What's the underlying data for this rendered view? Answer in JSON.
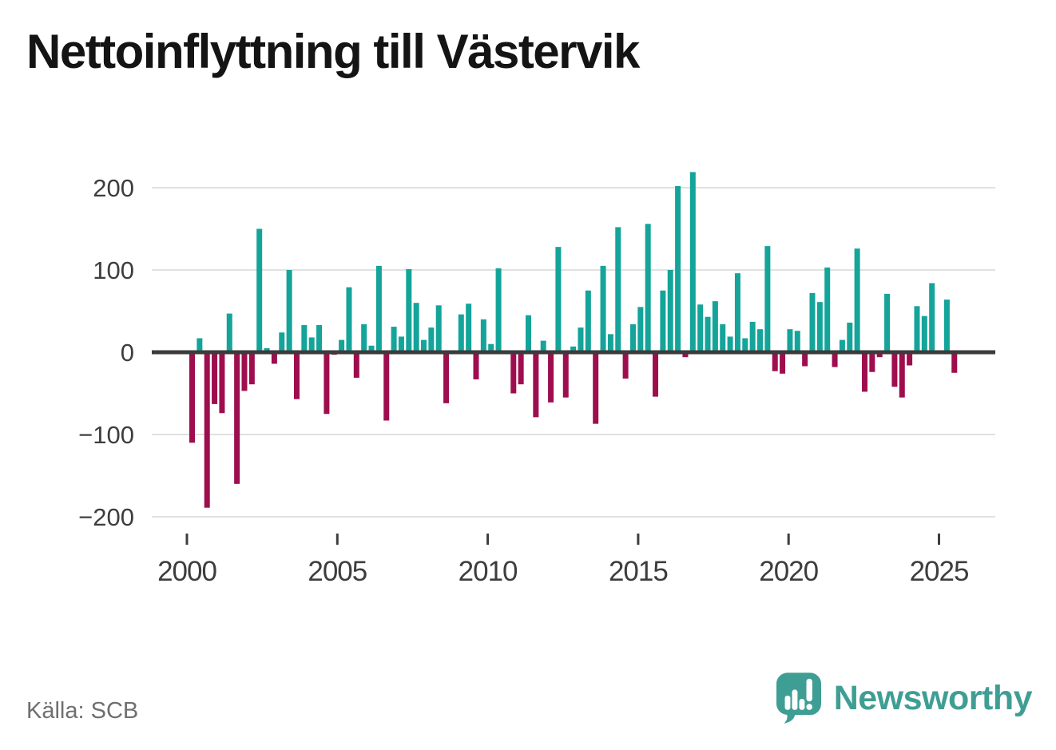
{
  "title": "Nettoinflyttning till Västervik",
  "source": "Källa: SCB",
  "branding": {
    "name": "Newsworthy"
  },
  "colors": {
    "positive": "#14a49a",
    "negative": "#9e0e4e",
    "axis_text": "#3d3d3d",
    "grid": "#e1e1e1",
    "zero_line": "#3b3b3b",
    "title": "#141414",
    "source_text": "#6f6f6f",
    "brand": "#3f9e94"
  },
  "chart_data": {
    "type": "bar",
    "title": "Nettoinflyttning till Västervik",
    "series_name": "Nettoinflyttning per kvartal",
    "xlabel": "",
    "ylabel": "",
    "grid": "horizontal",
    "legend": "none",
    "ylim": [
      -220,
      240
    ],
    "yticks": [
      200,
      100,
      0,
      -100,
      -200
    ],
    "ytick_labels": [
      "200",
      "100",
      "0",
      "−100",
      "−200"
    ],
    "xticks": [
      "2000",
      "2005",
      "2010",
      "2015",
      "2020",
      "2025"
    ],
    "x": [
      "2000K1",
      "2000K2",
      "2000K3",
      "2000K4",
      "2001K1",
      "2001K2",
      "2001K3",
      "2001K4",
      "2002K1",
      "2002K2",
      "2002K3",
      "2002K4",
      "2003K1",
      "2003K2",
      "2003K3",
      "2003K4",
      "2004K1",
      "2004K2",
      "2004K3",
      "2004K4",
      "2005K1",
      "2005K2",
      "2005K3",
      "2005K4",
      "2006K1",
      "2006K2",
      "2006K3",
      "2006K4",
      "2007K1",
      "2007K2",
      "2007K3",
      "2007K4",
      "2008K1",
      "2008K2",
      "2008K3",
      "2008K4",
      "2009K1",
      "2009K2",
      "2009K3",
      "2009K4",
      "2010K1",
      "2010K2",
      "2010K3",
      "2010K4",
      "2011K1",
      "2011K2",
      "2011K3",
      "2011K4",
      "2012K1",
      "2012K2",
      "2012K3",
      "2012K4",
      "2013K1",
      "2013K2",
      "2013K3",
      "2013K4",
      "2014K1",
      "2014K2",
      "2014K3",
      "2014K4",
      "2015K1",
      "2015K2",
      "2015K3",
      "2015K4",
      "2016K1",
      "2016K2",
      "2016K3",
      "2016K4",
      "2017K1",
      "2017K2",
      "2017K3",
      "2017K4",
      "2018K1",
      "2018K2",
      "2018K3",
      "2018K4",
      "2019K1",
      "2019K2",
      "2019K3",
      "2019K4",
      "2020K1",
      "2020K2",
      "2020K3",
      "2020K4",
      "2021K1",
      "2021K2",
      "2021K3",
      "2021K4",
      "2022K1",
      "2022K2",
      "2022K3",
      "2022K4",
      "2023K1",
      "2023K2",
      "2023K3",
      "2023K4",
      "2024K1",
      "2024K2",
      "2024K3",
      "2024K4",
      "2025K1",
      "2025K2",
      "2025K3"
    ],
    "values": [
      -110,
      17,
      -189,
      -63,
      -74,
      47,
      -160,
      -47,
      -39,
      150,
      5,
      -14,
      24,
      100,
      -57,
      33,
      18,
      33,
      -75,
      -3,
      15,
      79,
      -31,
      34,
      8,
      105,
      -83,
      31,
      19,
      101,
      60,
      15,
      30,
      57,
      -62,
      0,
      46,
      59,
      -33,
      40,
      10,
      102,
      0,
      -50,
      -39,
      45,
      -79,
      14,
      -61,
      128,
      -55,
      7,
      30,
      75,
      -87,
      105,
      22,
      152,
      -32,
      34,
      55,
      156,
      -54,
      75,
      100,
      202,
      -6,
      219,
      58,
      43,
      62,
      34,
      19,
      96,
      17,
      37,
      28,
      129,
      -23,
      -26,
      28,
      26,
      -17,
      72,
      61,
      103,
      -18,
      15,
      36,
      126,
      -48,
      -24,
      -6,
      71,
      -42,
      -55,
      -16,
      56,
      44,
      84,
      0,
      64,
      -25
    ]
  }
}
